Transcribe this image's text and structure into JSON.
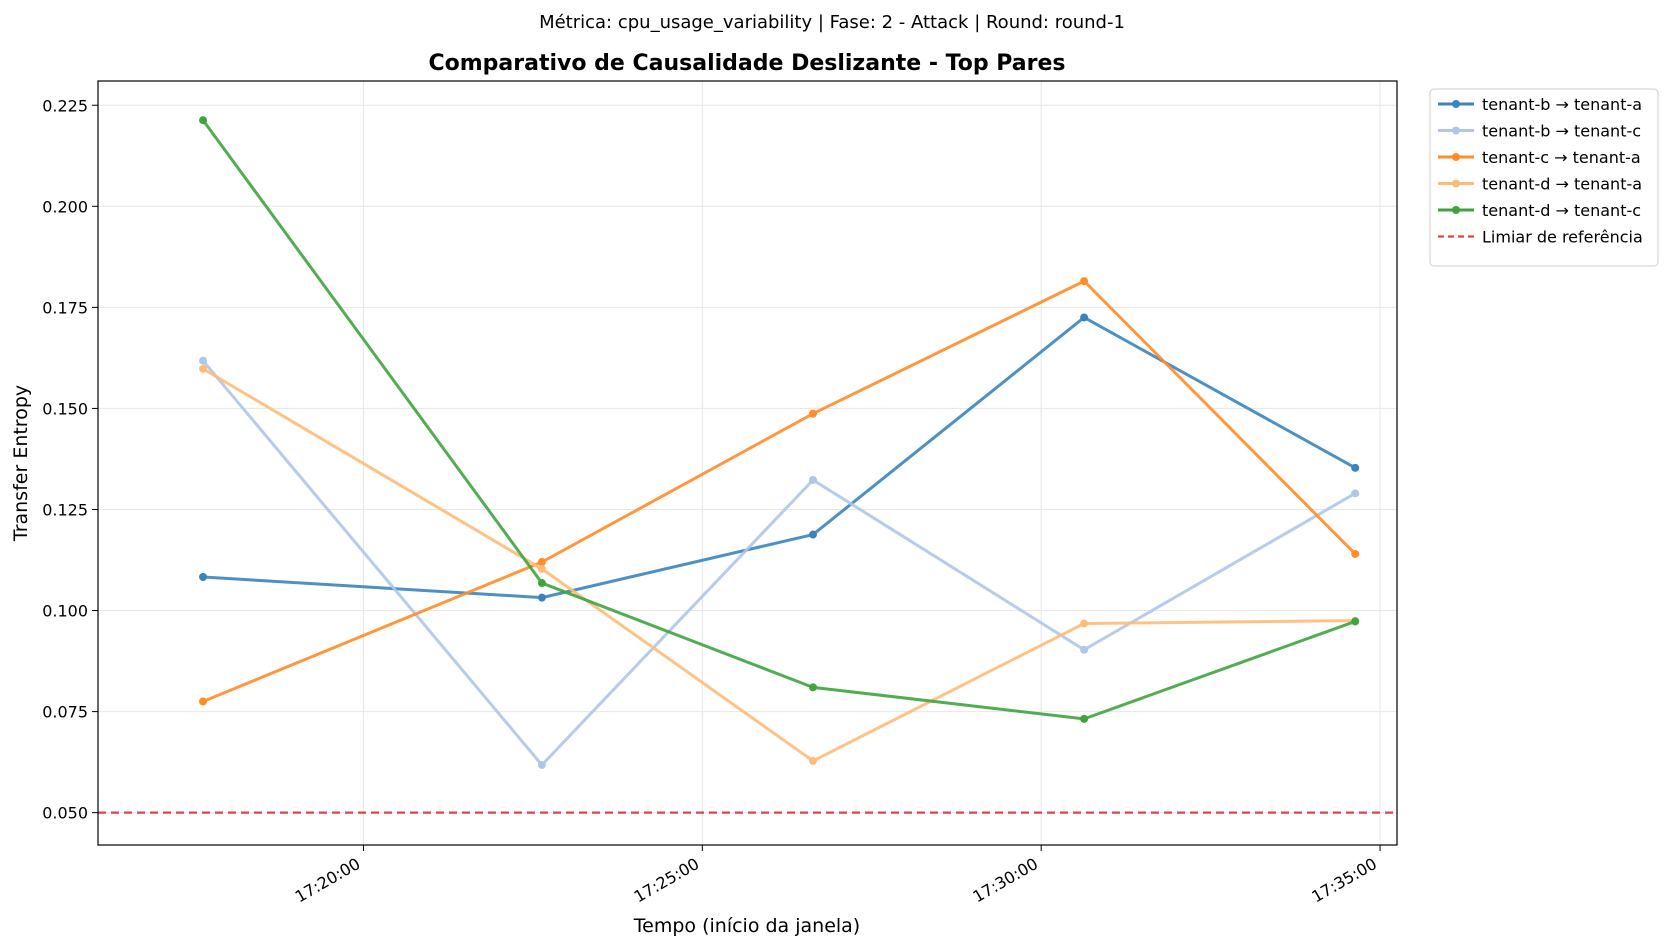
{
  "suptitle": "Métrica: cpu_usage_variability | Fase: 2 - Attack | Round: round-1",
  "chart_data": {
    "type": "line",
    "title": "Comparativo de Causalidade Deslizante - Top Pares",
    "xlabel": "Tempo (início da janela)",
    "ylabel": "Transfer Entropy",
    "x": [
      "17:17:38",
      "17:22:38",
      "17:26:38",
      "17:30:38",
      "17:34:38"
    ],
    "x_ticks": [
      "17:20:00",
      "17:25:00",
      "17:30:00",
      "17:35:00"
    ],
    "xlim": [
      "17:16:05",
      "17:35:15"
    ],
    "y_ticks": [
      "0.050",
      "0.075",
      "0.100",
      "0.125",
      "0.150",
      "0.175",
      "0.200",
      "0.225"
    ],
    "ylim": [
      0.042,
      0.231
    ],
    "grid": true,
    "legend_position": "outside-top-right",
    "series": [
      {
        "name": "tenant-b → tenant-a",
        "color": "#3a84be",
        "values": [
          0.1083,
          0.1032,
          0.1188,
          0.1725,
          0.1353
        ]
      },
      {
        "name": "tenant-b → tenant-c",
        "color": "#aec7e8",
        "values": [
          0.1618,
          0.0618,
          0.1323,
          0.0903,
          0.129
        ]
      },
      {
        "name": "tenant-c → tenant-a",
        "color": "#ff8d28",
        "values": [
          0.0775,
          0.112,
          0.1487,
          0.1815,
          0.114
        ]
      },
      {
        "name": "tenant-d → tenant-a",
        "color": "#ffbb78",
        "values": [
          0.1598,
          0.1103,
          0.0628,
          0.0968,
          0.0975
        ]
      },
      {
        "name": "tenant-d → tenant-c",
        "color": "#3fa43f",
        "values": [
          0.2213,
          0.1068,
          0.081,
          0.0732,
          0.0973
        ]
      }
    ],
    "reference_line": {
      "name": "Limiar de referência",
      "value": 0.05,
      "color": "#e84040"
    }
  }
}
